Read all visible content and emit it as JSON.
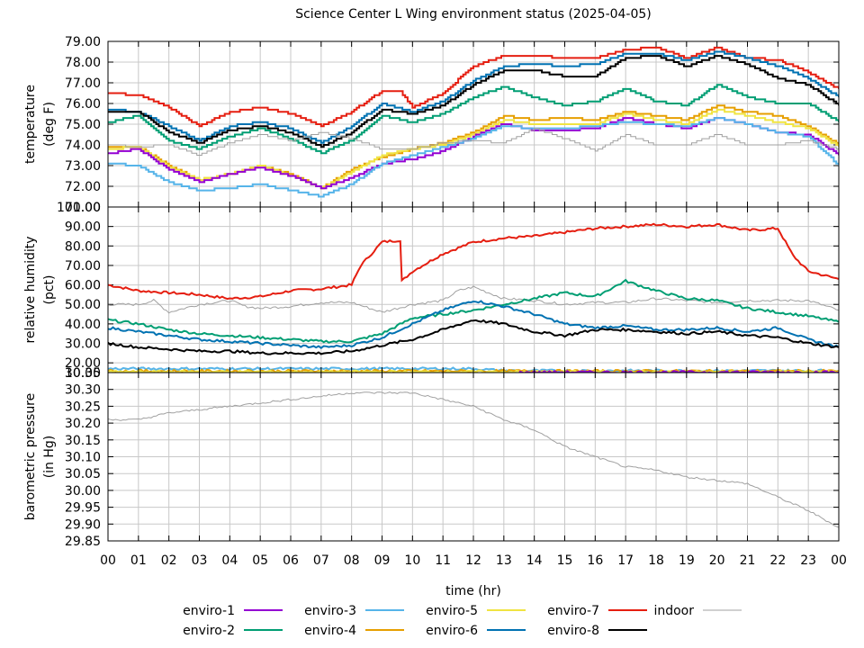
{
  "chart_data": {
    "type": "line",
    "title": "Science Center L Wing environment status (2025-04-05)",
    "xlabel": "time (hr)",
    "xlim": [
      0,
      24
    ],
    "x_tick_labels": [
      "00",
      "01",
      "02",
      "03",
      "04",
      "05",
      "06",
      "07",
      "08",
      "09",
      "10",
      "11",
      "12",
      "13",
      "14",
      "15",
      "16",
      "17",
      "18",
      "19",
      "20",
      "21",
      "22",
      "23",
      "00"
    ],
    "legend": [
      {
        "name": "enviro-1",
        "color": "#9400d3"
      },
      {
        "name": "enviro-2",
        "color": "#009e73"
      },
      {
        "name": "enviro-3",
        "color": "#56b4e9"
      },
      {
        "name": "enviro-4",
        "color": "#e69f00"
      },
      {
        "name": "enviro-5",
        "color": "#f0e442"
      },
      {
        "name": "enviro-6",
        "color": "#0072b2"
      },
      {
        "name": "enviro-7",
        "color": "#e51e10"
      },
      {
        "name": "enviro-8",
        "color": "#000000"
      },
      {
        "name": "indoor",
        "color": "#a0a0a0"
      }
    ],
    "panels": [
      {
        "id": "temperature",
        "ylabel_line1": "temperature",
        "ylabel_line2": "(deg F)",
        "ylim": [
          71.0,
          79.0
        ],
        "yticks": [
          79.0,
          78.0,
          77.0,
          76.0,
          75.0,
          74.0,
          73.0,
          72.0
        ],
        "ytick_labels": [
          "79.00",
          "78.00",
          "77.00",
          "76.00",
          "75.00",
          "74.00",
          "73.00",
          "72.00"
        ],
        "bottom_label": "71.00",
        "series": [
          {
            "name": "enviro-7",
            "x": [
              0,
              1,
              2,
              3,
              4,
              5,
              6,
              7,
              8,
              9,
              9.6,
              10,
              11,
              12,
              13,
              14,
              15,
              16,
              17,
              18,
              19,
              20,
              21,
              22,
              23,
              24
            ],
            "y": [
              76.5,
              76.4,
              75.8,
              74.9,
              75.6,
              75.8,
              75.5,
              74.9,
              75.6,
              76.6,
              76.6,
              75.8,
              76.5,
              77.8,
              78.3,
              78.3,
              78.2,
              78.2,
              78.6,
              78.7,
              78.2,
              78.7,
              78.2,
              78.1,
              77.5,
              76.7
            ]
          },
          {
            "name": "enviro-6",
            "x": [
              0,
              1,
              2,
              3,
              4,
              5,
              6,
              7,
              8,
              9,
              10,
              11,
              12,
              13,
              14,
              15,
              16,
              17,
              18,
              19,
              20,
              21,
              22,
              23,
              24
            ],
            "y": [
              75.7,
              75.6,
              74.9,
              74.2,
              74.9,
              75.1,
              74.8,
              74.1,
              74.9,
              76.0,
              75.6,
              76.1,
              77.1,
              77.8,
              77.9,
              77.8,
              77.9,
              78.4,
              78.4,
              78.1,
              78.5,
              78.2,
              77.8,
              77.2,
              76.3
            ]
          },
          {
            "name": "enviro-8",
            "x": [
              0,
              1,
              2,
              3,
              4,
              5,
              6,
              7,
              8,
              9,
              10,
              11,
              12,
              13,
              14,
              15,
              16,
              17,
              18,
              19,
              20,
              21,
              22,
              23,
              24
            ],
            "y": [
              75.6,
              75.6,
              74.6,
              74.1,
              74.7,
              74.9,
              74.6,
              73.9,
              74.6,
              75.7,
              75.5,
              75.9,
              76.9,
              77.6,
              77.6,
              77.3,
              77.3,
              78.2,
              78.3,
              77.8,
              78.3,
              77.9,
              77.2,
              76.9,
              75.9
            ]
          },
          {
            "name": "enviro-2",
            "x": [
              0,
              1,
              2,
              3,
              4,
              5,
              6,
              7,
              8,
              9,
              10,
              11,
              12,
              13,
              14,
              15,
              16,
              17,
              18,
              19,
              20,
              21,
              22,
              23,
              24
            ],
            "y": [
              75.1,
              75.4,
              74.2,
              73.8,
              74.4,
              74.8,
              74.3,
              73.6,
              74.2,
              75.4,
              75.1,
              75.5,
              76.3,
              76.8,
              76.3,
              75.9,
              76.1,
              76.7,
              76.1,
              75.9,
              76.9,
              76.3,
              76.0,
              76.0,
              75.1
            ]
          },
          {
            "name": "enviro-4",
            "x": [
              0,
              1,
              2,
              3,
              4,
              5,
              6,
              7,
              8,
              9,
              10,
              11,
              12,
              13,
              14,
              15,
              16,
              17,
              18,
              19,
              20,
              21,
              22,
              23,
              24
            ],
            "y": [
              73.9,
              73.9,
              73.0,
              72.3,
              72.6,
              73.0,
              72.6,
              71.9,
              72.8,
              73.4,
              73.8,
              74.1,
              74.6,
              75.4,
              75.2,
              75.3,
              75.2,
              75.6,
              75.4,
              75.2,
              75.9,
              75.6,
              75.4,
              74.9,
              74.0
            ]
          },
          {
            "name": "enviro-5",
            "x": [
              0,
              1,
              2,
              3,
              4,
              5,
              6,
              7,
              8,
              9,
              10,
              11,
              12,
              13,
              14,
              15,
              16,
              17,
              18,
              19,
              20,
              21,
              22,
              23,
              24
            ],
            "y": [
              73.8,
              73.9,
              72.9,
              72.3,
              72.6,
              73.0,
              72.5,
              71.9,
              72.7,
              73.5,
              73.8,
              74.0,
              74.5,
              75.2,
              75.0,
              75.0,
              75.0,
              75.5,
              75.2,
              75.0,
              75.7,
              75.4,
              75.1,
              74.8,
              73.9
            ]
          },
          {
            "name": "enviro-1",
            "x": [
              0,
              1,
              2,
              3,
              4,
              5,
              6,
              7,
              8,
              9,
              10,
              11,
              12,
              13,
              14,
              15,
              16,
              17,
              18,
              19,
              20,
              21,
              22,
              23,
              24
            ],
            "y": [
              73.6,
              73.8,
              72.8,
              72.2,
              72.6,
              72.9,
              72.5,
              71.9,
              72.4,
              73.1,
              73.3,
              73.7,
              74.4,
              75.0,
              74.7,
              74.7,
              74.8,
              75.3,
              75.0,
              74.8,
              75.3,
              75.0,
              74.6,
              74.5,
              73.5
            ]
          },
          {
            "name": "enviro-3",
            "x": [
              0,
              1,
              2,
              3,
              4,
              5,
              6,
              7,
              8,
              9,
              10,
              11,
              12,
              13,
              14,
              15,
              16,
              17,
              18,
              19,
              20,
              21,
              22,
              23,
              24
            ],
            "y": [
              73.1,
              73.0,
              72.2,
              71.8,
              71.9,
              72.1,
              71.8,
              71.5,
              72.1,
              73.1,
              73.5,
              73.9,
              74.3,
              74.9,
              74.8,
              74.8,
              74.9,
              75.1,
              75.0,
              74.9,
              75.3,
              75.0,
              74.6,
              74.4,
              73.0
            ]
          },
          {
            "name": "indoor",
            "x": [
              0,
              1,
              2,
              3,
              4,
              5,
              6,
              7,
              8,
              9,
              10,
              11,
              12,
              13,
              14,
              15,
              16,
              17,
              18,
              19,
              20,
              21,
              22,
              23,
              24
            ],
            "y": [
              74.0,
              73.9,
              74.0,
              73.5,
              74.1,
              74.5,
              74.2,
              74.6,
              74.3,
              73.8,
              73.8,
              74.1,
              74.2,
              74.1,
              74.8,
              74.3,
              73.7,
              74.5,
              74.0,
              74.0,
              74.5,
              74.0,
              74.0,
              74.2,
              73.8
            ]
          }
        ]
      },
      {
        "id": "humidity",
        "ylabel_line1": "relative humidity",
        "ylabel_line2": "(pct)",
        "ylim": [
          15.0,
          100.0
        ],
        "yticks": [
          90,
          80,
          70,
          60,
          50,
          40,
          30,
          20
        ],
        "ytick_labels": [
          "90.00",
          "80.00",
          "70.00",
          "60.00",
          "50.00",
          "40.00",
          "30.00",
          "20.00"
        ],
        "top_label": "100.00",
        "bottom_label": "10.00",
        "series": [
          {
            "name": "enviro-7",
            "x": [
              0,
              1,
              2,
              3,
              4,
              5,
              6,
              7,
              8,
              8.3,
              9,
              9.6,
              9.65,
              10,
              11,
              12,
              13,
              14,
              15,
              16,
              17,
              18,
              19,
              20,
              21,
              22,
              22.5,
              23,
              24
            ],
            "y": [
              60,
              57,
              56,
              55,
              53,
              54,
              57,
              58,
              60,
              70,
              82,
              83,
              62,
              67,
              76,
              82,
              84,
              85,
              87,
              89,
              90,
              91,
              90,
              91,
              88,
              89,
              75,
              67,
              63
            ]
          },
          {
            "name": "indoor",
            "x": [
              0,
              1,
              1.5,
              2,
              3,
              4,
              4.5,
              5,
              6,
              7,
              8,
              9,
              10,
              11,
              11.5,
              12,
              12.5,
              13,
              14,
              15,
              16,
              17,
              18,
              19,
              20,
              21,
              22,
              23,
              24
            ],
            "y": [
              50,
              50,
              52,
              46,
              50,
              52,
              49,
              48,
              49,
              51,
              51,
              46,
              50,
              52,
              57,
              59,
              56,
              53,
              52,
              50,
              51,
              51,
              53,
              52,
              51,
              52,
              52,
              52,
              47
            ]
          },
          {
            "name": "enviro-2",
            "x": [
              0,
              1,
              2,
              3,
              4,
              5,
              6,
              7,
              8,
              9,
              10,
              11,
              12,
              13,
              14,
              15,
              16,
              17,
              18,
              19,
              20,
              21,
              22,
              23,
              24
            ],
            "y": [
              42,
              40,
              37,
              35,
              34,
              33,
              32,
              31,
              31,
              35,
              43,
              45,
              47,
              50,
              53,
              56,
              54,
              62,
              57,
              53,
              52,
              48,
              46,
              44,
              41
            ]
          },
          {
            "name": "enviro-6",
            "x": [
              0,
              1,
              2,
              3,
              4,
              5,
              6,
              7,
              8,
              9,
              10,
              11,
              12,
              13,
              14,
              15,
              16,
              17,
              18,
              19,
              20,
              21,
              22,
              23,
              24
            ],
            "y": [
              38,
              36,
              34,
              32,
              31,
              30,
              29,
              28,
              29,
              33,
              40,
              47,
              52,
              49,
              45,
              40,
              38,
              39,
              37,
              37,
              38,
              36,
              38,
              32,
              28
            ]
          },
          {
            "name": "enviro-8",
            "x": [
              0,
              1,
              2,
              3,
              4,
              5,
              6,
              7,
              8,
              9,
              10,
              11,
              12,
              13,
              14,
              15,
              16,
              17,
              18,
              19,
              20,
              21,
              22,
              23,
              24
            ],
            "y": [
              30,
              28,
              27,
              26,
              26,
              25,
              25,
              25,
              26,
              29,
              32,
              37,
              42,
              40,
              36,
              34,
              37,
              37,
              36,
              35,
              36,
              34,
              33,
              30,
              28
            ]
          },
          {
            "name": "enviro-3",
            "x": [
              0,
              12,
              13,
              24
            ],
            "y": [
              17,
              17,
              16,
              16
            ]
          },
          {
            "name": "enviro-4",
            "x": [
              0,
              24
            ],
            "y": [
              15.8,
              15.8
            ]
          },
          {
            "name": "enviro-5",
            "x": [
              0,
              24
            ],
            "y": [
              15.4,
              15.4
            ]
          },
          {
            "name": "enviro-1",
            "x": [
              13.5,
              24
            ],
            "y": [
              15.2,
              15.2
            ]
          }
        ]
      },
      {
        "id": "pressure",
        "ylabel_line1": "barometric pressure",
        "ylabel_line2": "(in Hg)",
        "ylim": [
          29.85,
          30.35
        ],
        "yticks": [
          30.3,
          30.25,
          30.2,
          30.15,
          30.1,
          30.05,
          30.0,
          29.95,
          29.9,
          29.85
        ],
        "ytick_labels": [
          "30.30",
          "30.25",
          "30.20",
          "30.15",
          "30.10",
          "30.05",
          "30.00",
          "29.95",
          "29.90",
          "29.85"
        ],
        "top_label": "30.35",
        "series": [
          {
            "name": "indoor",
            "x": [
              0,
              1,
              2,
              3,
              4,
              5,
              6,
              7,
              8,
              9,
              10,
              11,
              12,
              13,
              14,
              15,
              16,
              17,
              18,
              19,
              20,
              21,
              22,
              23,
              24
            ],
            "y": [
              30.21,
              30.21,
              30.23,
              30.24,
              30.25,
              30.26,
              30.27,
              30.28,
              30.29,
              30.29,
              30.29,
              30.27,
              30.25,
              30.21,
              30.18,
              30.13,
              30.1,
              30.07,
              30.06,
              30.04,
              30.03,
              30.02,
              29.98,
              29.94,
              29.89
            ]
          }
        ]
      }
    ]
  }
}
